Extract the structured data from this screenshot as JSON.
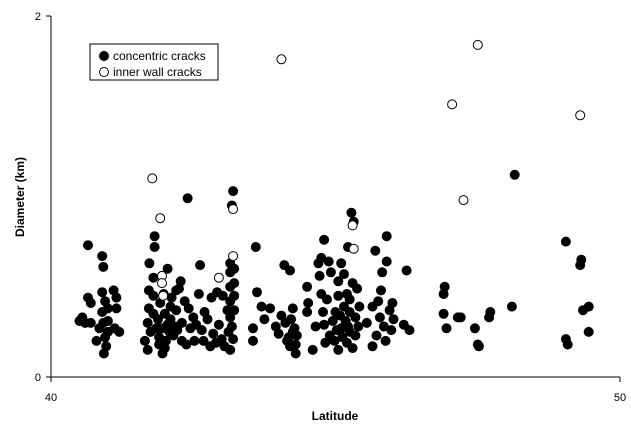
{
  "chart_data": {
    "type": "scatter",
    "xlabel": "Latitude",
    "ylabel": "Diameter (km)",
    "xlim": [
      40,
      50
    ],
    "ylim": [
      0,
      2
    ],
    "xticks": [
      "40",
      "50"
    ],
    "yticks": [
      "0",
      "2"
    ],
    "grid": false,
    "legend_position": "top-left",
    "series": [
      {
        "name": "concentric cracks",
        "marker": "filled-circle",
        "color": "#000000",
        "points": [
          [
            40.5,
            0.31
          ],
          [
            40.55,
            0.33
          ],
          [
            40.6,
            0.3
          ],
          [
            40.65,
            0.44
          ],
          [
            40.65,
            0.73
          ],
          [
            40.7,
            0.3
          ],
          [
            40.7,
            0.41
          ],
          [
            40.8,
            0.2
          ],
          [
            40.85,
            0.27
          ],
          [
            40.9,
            0.36
          ],
          [
            40.9,
            0.47
          ],
          [
            40.9,
            0.67
          ],
          [
            40.92,
            0.61
          ],
          [
            40.93,
            0.13
          ],
          [
            40.95,
            0.42
          ],
          [
            40.97,
            0.17
          ],
          [
            41.0,
            0.38
          ],
          [
            41.0,
            0.31
          ],
          [
            41.0,
            0.25
          ],
          [
            40.95,
            0.22
          ],
          [
            40.92,
            0.3
          ],
          [
            41.1,
            0.48
          ],
          [
            41.12,
            0.27
          ],
          [
            41.15,
            0.44
          ],
          [
            41.15,
            0.38
          ],
          [
            41.2,
            0.25
          ],
          [
            41.65,
            0.2
          ],
          [
            41.7,
            0.15
          ],
          [
            41.7,
            0.3
          ],
          [
            41.72,
            0.38
          ],
          [
            41.72,
            0.48
          ],
          [
            41.73,
            0.63
          ],
          [
            41.75,
            0.25
          ],
          [
            41.8,
            0.55
          ],
          [
            41.8,
            0.45
          ],
          [
            41.8,
            0.35
          ],
          [
            41.82,
            0.72
          ],
          [
            41.82,
            0.78
          ],
          [
            41.85,
            0.27
          ],
          [
            41.88,
            0.32
          ],
          [
            41.9,
            0.22
          ],
          [
            41.9,
            0.18
          ],
          [
            41.92,
            0.41
          ],
          [
            41.95,
            0.27
          ],
          [
            41.96,
            0.13
          ],
          [
            41.98,
            0.46
          ],
          [
            42.0,
            0.16
          ],
          [
            42.0,
            0.35
          ],
          [
            42.02,
            0.2
          ],
          [
            42.05,
            0.29
          ],
          [
            42.05,
            0.6
          ],
          [
            42.08,
            0.25
          ],
          [
            42.1,
            0.39
          ],
          [
            42.1,
            0.32
          ],
          [
            42.12,
            0.44
          ],
          [
            42.15,
            0.23
          ],
          [
            42.18,
            0.28
          ],
          [
            42.2,
            0.48
          ],
          [
            42.2,
            0.37
          ],
          [
            42.22,
            0.26
          ],
          [
            42.25,
            0.49
          ],
          [
            42.28,
            0.53
          ],
          [
            42.3,
            0.3
          ],
          [
            42.3,
            0.2
          ],
          [
            42.35,
            0.42
          ],
          [
            42.38,
            0.18
          ],
          [
            42.4,
            0.99
          ],
          [
            42.42,
            0.38
          ],
          [
            42.45,
            0.27
          ],
          [
            42.5,
            0.33
          ],
          [
            42.52,
            0.2
          ],
          [
            42.55,
            0.29
          ],
          [
            42.6,
            0.46
          ],
          [
            42.62,
            0.62
          ],
          [
            42.65,
            0.26
          ],
          [
            42.68,
            0.2
          ],
          [
            42.7,
            0.36
          ],
          [
            42.75,
            0.32
          ],
          [
            42.8,
            0.17
          ],
          [
            42.82,
            0.44
          ],
          [
            42.85,
            0.24
          ],
          [
            42.9,
            0.19
          ],
          [
            42.92,
            0.47
          ],
          [
            42.95,
            0.29
          ],
          [
            43.0,
            0.21
          ],
          [
            43.02,
            0.45
          ],
          [
            43.05,
            0.17
          ],
          [
            43.1,
            0.37
          ],
          [
            43.12,
            0.25
          ],
          [
            43.15,
            0.15
          ],
          [
            43.15,
            0.33
          ],
          [
            43.15,
            0.42
          ],
          [
            43.15,
            0.5
          ],
          [
            43.15,
            0.58
          ],
          [
            43.15,
            0.63
          ],
          [
            43.18,
            0.28
          ],
          [
            43.18,
            0.95
          ],
          [
            43.2,
            1.03
          ],
          [
            43.2,
            0.21
          ],
          [
            43.22,
            0.37
          ],
          [
            43.22,
            0.45
          ],
          [
            43.22,
            0.52
          ],
          [
            43.22,
            0.6
          ],
          [
            43.55,
            0.27
          ],
          [
            43.55,
            0.2
          ],
          [
            43.6,
            0.72
          ],
          [
            43.62,
            0.47
          ],
          [
            43.7,
            0.39
          ],
          [
            43.75,
            0.32
          ],
          [
            43.85,
            0.38
          ],
          [
            43.95,
            0.28
          ],
          [
            44.0,
            0.24
          ],
          [
            44.05,
            0.34
          ],
          [
            44.1,
            0.62
          ],
          [
            44.12,
            0.3
          ],
          [
            44.15,
            0.2
          ],
          [
            44.18,
            0.22
          ],
          [
            44.2,
            0.59
          ],
          [
            44.2,
            0.17
          ],
          [
            44.22,
            0.32
          ],
          [
            44.25,
            0.25
          ],
          [
            44.25,
            0.38
          ],
          [
            44.28,
            0.27
          ],
          [
            44.3,
            0.18
          ],
          [
            44.3,
            0.13
          ],
          [
            44.32,
            0.23
          ],
          [
            44.5,
            0.5
          ],
          [
            44.5,
            0.36
          ],
          [
            44.52,
            0.41
          ],
          [
            44.6,
            0.15
          ],
          [
            44.65,
            0.28
          ],
          [
            44.7,
            0.63
          ],
          [
            44.72,
            0.56
          ],
          [
            44.75,
            0.66
          ],
          [
            44.75,
            0.46
          ],
          [
            44.78,
            0.36
          ],
          [
            44.8,
            0.29
          ],
          [
            44.8,
            0.76
          ],
          [
            44.82,
            0.19
          ],
          [
            44.85,
            0.43
          ],
          [
            44.88,
            0.64
          ],
          [
            44.9,
            0.23
          ],
          [
            44.92,
            0.58
          ],
          [
            44.95,
            0.31
          ],
          [
            44.98,
            0.2
          ],
          [
            45.0,
            0.36
          ],
          [
            45.02,
            0.26
          ],
          [
            45.05,
            0.53
          ],
          [
            45.05,
            0.45
          ],
          [
            45.05,
            0.15
          ],
          [
            45.08,
            0.34
          ],
          [
            45.1,
            0.27
          ],
          [
            45.1,
            0.63
          ],
          [
            45.12,
            0.22
          ],
          [
            45.15,
            0.57
          ],
          [
            45.15,
            0.39
          ],
          [
            45.18,
            0.31
          ],
          [
            45.2,
            0.46
          ],
          [
            45.2,
            0.19
          ],
          [
            45.22,
            0.28
          ],
          [
            45.22,
            0.72
          ],
          [
            45.25,
            0.36
          ],
          [
            45.25,
            0.25
          ],
          [
            45.25,
            0.43
          ],
          [
            45.28,
            0.91
          ],
          [
            45.3,
            0.16
          ],
          [
            45.3,
            0.52
          ],
          [
            45.32,
            0.86
          ],
          [
            45.35,
            0.23
          ],
          [
            45.35,
            0.33
          ],
          [
            45.38,
            0.49
          ],
          [
            45.4,
            0.28
          ],
          [
            45.42,
            0.39
          ],
          [
            45.55,
            0.3
          ],
          [
            45.65,
            0.17
          ],
          [
            45.65,
            0.39
          ],
          [
            45.7,
            0.7
          ],
          [
            45.72,
            0.23
          ],
          [
            45.75,
            0.42
          ],
          [
            45.78,
            0.33
          ],
          [
            45.8,
            0.48
          ],
          [
            45.82,
            0.58
          ],
          [
            45.85,
            0.28
          ],
          [
            45.88,
            0.2
          ],
          [
            45.9,
            0.64
          ],
          [
            45.9,
            0.78
          ],
          [
            45.95,
            0.37
          ],
          [
            45.98,
            0.26
          ],
          [
            46.0,
            0.41
          ],
          [
            46.02,
            0.32
          ],
          [
            46.2,
            0.29
          ],
          [
            46.25,
            0.59
          ],
          [
            46.3,
            0.26
          ],
          [
            46.9,
            0.46
          ],
          [
            46.9,
            0.35
          ],
          [
            46.92,
            0.5
          ],
          [
            46.95,
            0.27
          ],
          [
            47.15,
            0.33
          ],
          [
            47.2,
            0.33
          ],
          [
            47.45,
            0.27
          ],
          [
            47.5,
            0.18
          ],
          [
            47.52,
            0.17
          ],
          [
            47.7,
            0.33
          ],
          [
            47.72,
            0.36
          ],
          [
            48.15,
            1.12
          ],
          [
            48.1,
            0.39
          ],
          [
            49.05,
            0.75
          ],
          [
            49.05,
            0.21
          ],
          [
            49.08,
            0.18
          ],
          [
            49.3,
            0.62
          ],
          [
            49.32,
            0.65
          ],
          [
            49.35,
            0.37
          ],
          [
            49.45,
            0.25
          ],
          [
            49.45,
            0.39
          ]
        ]
      },
      {
        "name": "inner wall cracks",
        "marker": "open-circle",
        "color": "#000000",
        "points": [
          [
            41.78,
            1.1
          ],
          [
            41.92,
            0.88
          ],
          [
            41.95,
            0.56
          ],
          [
            41.95,
            0.52
          ],
          [
            41.97,
            0.45
          ],
          [
            42.95,
            0.55
          ],
          [
            43.2,
            0.93
          ],
          [
            43.2,
            0.67
          ],
          [
            44.05,
            1.76
          ],
          [
            45.3,
            0.84
          ],
          [
            45.32,
            0.71
          ],
          [
            47.05,
            1.51
          ],
          [
            47.25,
            0.98
          ],
          [
            47.5,
            1.84
          ],
          [
            49.3,
            1.45
          ]
        ]
      }
    ]
  }
}
